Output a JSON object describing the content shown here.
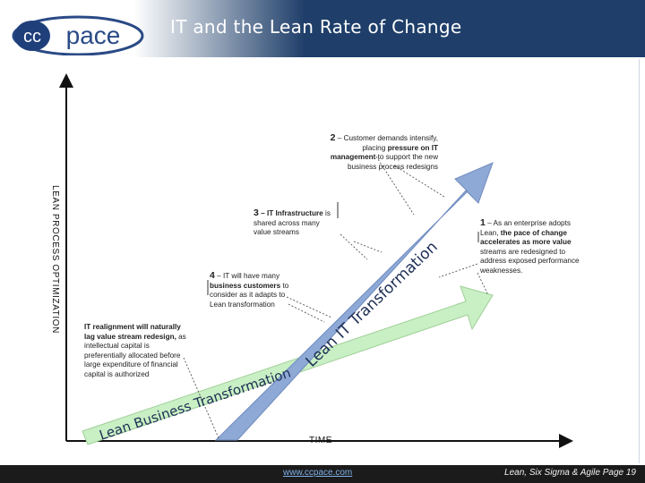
{
  "header": {
    "title": "IT and the Lean Rate of Change",
    "logo_text": "ccpace",
    "logo_cc": "cc",
    "logo_pace": "pace"
  },
  "axes": {
    "y_label": "LEAN PROCESS OPTIMIZATION",
    "x_label": "TIME"
  },
  "arrows": {
    "lean_it": "Lean IT Transformation",
    "lean_business": "Lean Business Transformation"
  },
  "notes": {
    "n1_num": "1",
    "n1_dash": " – As an enterprise adopts Lean, ",
    "n1_bold": "the pace of change accelerates as more value",
    "n1_rest": " streams are redesigned to address exposed performance weaknesses.",
    "n2_num": "2",
    "n2_dash": " – Customer demands intensify, placing ",
    "n2_bold": "pressure on IT management",
    "n2_rest": " to support the new business process redesigns",
    "n3_num": "3",
    "n3_bold": " – IT Infrastructure",
    "n3_rest": " is shared across many value streams",
    "n4_num": "4",
    "n4_dash": " – IT will have many ",
    "n4_bold": "business customers",
    "n4_rest": " to consider as it adapts to Lean transformation",
    "n5_bold": "IT realignment will naturally lag value stream redesign,",
    "n5_rest": " as intellectual capital is preferentially allocated before large expenditure of financial capital is authorized"
  },
  "footer": {
    "link": "www.ccpace.com",
    "right": "Lean, Six Sigma & Agile  Page 19"
  },
  "colors": {
    "header_bg": "#1f3f6a",
    "it_arrow": "#8fa9d6",
    "business_arrow": "#c9efc4",
    "footer_bg": "#1b1b1b"
  }
}
